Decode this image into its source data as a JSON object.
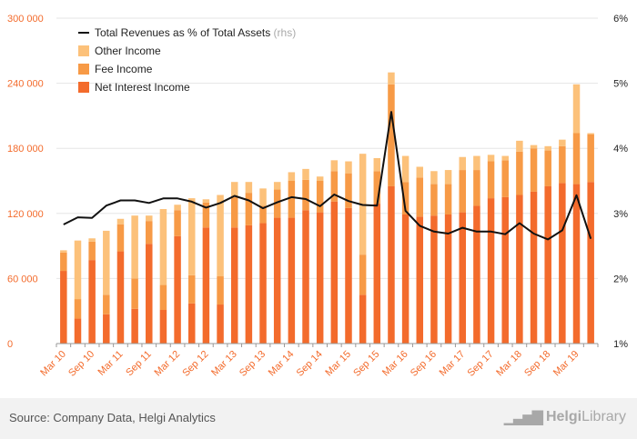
{
  "colors": {
    "net_interest": "#f36b2c",
    "fee": "#f79a46",
    "other": "#fcc17a",
    "line": "#111111",
    "left_axis": "#f36b2c"
  },
  "chart_data": {
    "type": "bar",
    "stacked": true,
    "categories": [
      "Mar 10",
      "Jun 10",
      "Sep 10",
      "Dec 10",
      "Mar 11",
      "Jun 11",
      "Sep 11",
      "Dec 11",
      "Mar 12",
      "Jun 12",
      "Sep 12",
      "Dec 12",
      "Mar 13",
      "Jun 13",
      "Sep 13",
      "Dec 13",
      "Mar 14",
      "Jun 14",
      "Sep 14",
      "Dec 14",
      "Mar 15",
      "Jun 15",
      "Sep 15",
      "Dec 15",
      "Mar 16",
      "Jun 16",
      "Sep 16",
      "Dec 16",
      "Mar 17",
      "Jun 17",
      "Sep 17",
      "Dec 17",
      "Mar 18",
      "Jun 18",
      "Sep 18",
      "Dec 18",
      "Mar 19",
      "Jun 19"
    ],
    "x_tick_labels": [
      "Mar 10",
      "Sep 10",
      "Mar 11",
      "Sep 11",
      "Mar 12",
      "Sep 12",
      "Mar 13",
      "Sep 13",
      "Mar 14",
      "Sep 14",
      "Mar 15",
      "Sep 15",
      "Mar 16",
      "Sep 16",
      "Mar 17",
      "Sep 17",
      "Mar 18",
      "Sep 18",
      "Mar 19"
    ],
    "series": [
      {
        "name": "Net Interest Income",
        "axis": "left",
        "values": [
          67000,
          23000,
          77000,
          27000,
          85000,
          32000,
          92000,
          31000,
          99000,
          37000,
          107000,
          36000,
          107000,
          109000,
          111000,
          116000,
          116000,
          123000,
          121000,
          131000,
          125000,
          45000,
          129000,
          145000,
          119000,
          117000,
          118000,
          119000,
          121000,
          127000,
          134000,
          135000,
          137000,
          140000,
          145000,
          148000,
          147000,
          149000
        ]
      },
      {
        "name": "Fee Income",
        "axis": "left",
        "values": [
          17000,
          18000,
          17000,
          18000,
          25000,
          28000,
          21000,
          23000,
          24000,
          26000,
          23000,
          26000,
          28000,
          30000,
          16000,
          26000,
          34000,
          28000,
          29000,
          28000,
          32000,
          37000,
          30000,
          94000,
          30000,
          36000,
          29000,
          28000,
          39000,
          33000,
          34000,
          34000,
          40000,
          40000,
          33000,
          34000,
          47000,
          44000
        ]
      },
      {
        "name": "Other Income",
        "axis": "left",
        "values": [
          2000,
          54000,
          3000,
          59000,
          5000,
          58000,
          5000,
          70000,
          5000,
          71000,
          3000,
          75000,
          14000,
          10000,
          16000,
          7000,
          8000,
          10000,
          4000,
          10000,
          11000,
          93000,
          12000,
          11000,
          24000,
          10000,
          12000,
          13000,
          12000,
          13000,
          6000,
          4000,
          10000,
          3000,
          4000,
          6000,
          45000,
          1000
        ]
      },
      {
        "name": "Total Revenues as % of Total Assets",
        "note": "(rhs)",
        "axis": "right",
        "type": "line",
        "values": [
          2.83,
          2.94,
          2.93,
          3.12,
          3.2,
          3.2,
          3.16,
          3.23,
          3.23,
          3.18,
          3.09,
          3.16,
          3.27,
          3.2,
          3.08,
          3.17,
          3.25,
          3.22,
          3.11,
          3.29,
          3.19,
          3.13,
          3.12,
          4.56,
          3.04,
          2.81,
          2.72,
          2.69,
          2.78,
          2.72,
          2.72,
          2.68,
          2.85,
          2.69,
          2.6,
          2.74,
          3.28,
          2.61
        ]
      }
    ],
    "y_left": {
      "min": 0,
      "max": 300000,
      "ticks": [
        "0",
        "60 000",
        "120 000",
        "180 000",
        "240 000",
        "300 000"
      ]
    },
    "y_right": {
      "min": 1,
      "max": 6,
      "ticks": [
        "1%",
        "2%",
        "3%",
        "4%",
        "5%",
        "6%"
      ]
    },
    "legend": {
      "placement": "top-left",
      "entries": [
        {
          "label": "Total Revenues as % of Total Assets",
          "suffix": "(rhs)",
          "kind": "line"
        },
        {
          "label": "Other Income",
          "kind": "box"
        },
        {
          "label": "Fee Income",
          "kind": "box"
        },
        {
          "label": "Net Interest Income",
          "kind": "box"
        }
      ]
    },
    "grid": true
  },
  "footer": {
    "source": "Source: Company Data, Helgi Analytics",
    "brand_strong": "Helgi",
    "brand_rest": "Library"
  }
}
